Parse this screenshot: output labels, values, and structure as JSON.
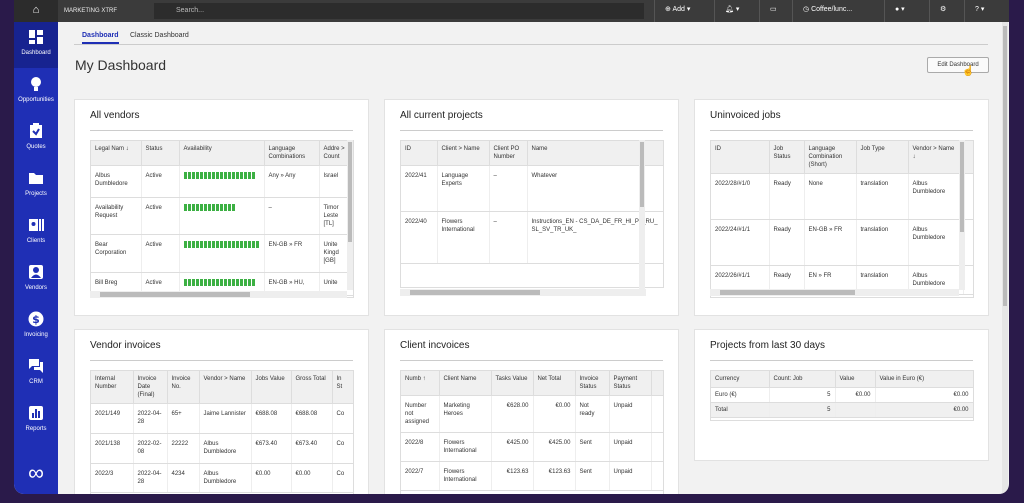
{
  "topbar": {
    "project": "MARKETING XTRF",
    "search_placeholder": "Search...",
    "add_label": "Add",
    "timer_label": "Coffee/lunc..."
  },
  "sidebar": {
    "items": [
      {
        "label": "Dashboard",
        "icon": "grid-icon"
      },
      {
        "label": "Opportunities",
        "icon": "lightbulb-icon"
      },
      {
        "label": "Quotes",
        "icon": "clipboard-icon"
      },
      {
        "label": "Projects",
        "icon": "folder-icon"
      },
      {
        "label": "Clients",
        "icon": "clients-icon"
      },
      {
        "label": "Vendors",
        "icon": "vendor-icon"
      },
      {
        "label": "Invoicing",
        "icon": "dollar-icon"
      },
      {
        "label": "CRM",
        "icon": "chat-icon"
      },
      {
        "label": "Reports",
        "icon": "chart-icon"
      }
    ],
    "logo": "∞"
  },
  "tabs": [
    {
      "label": "Dashboard"
    },
    {
      "label": "Classic Dashboard"
    }
  ],
  "page_title": "My Dashboard",
  "edit_button": "Edit Dashboard",
  "cards": {
    "vendors": {
      "title": "All vendors",
      "headers": [
        "Legal Nam ↓",
        "Status",
        "Availability",
        "Language Combinations",
        "Addre > Count"
      ],
      "rows": [
        [
          "Albus Dumbledore",
          "Active",
          "",
          "Any » Any",
          "Israel"
        ],
        [
          "Availability Request",
          "Active",
          "",
          "–",
          "Timor Leste [TL]"
        ],
        [
          "Bear Corporation",
          "Active",
          "",
          "EN-GB » FR",
          "Unite Kingd [GB]"
        ],
        [
          "Bill Breg",
          "Active",
          "",
          "EN-GB » HU,",
          "Unite"
        ]
      ]
    },
    "projects": {
      "title": "All current projects",
      "headers": [
        "ID",
        "Client > Name",
        "Client PO Number",
        "Name"
      ],
      "rows": [
        [
          "2022/41",
          "Language Experts",
          "–",
          "Whatever"
        ],
        [
          "2022/40",
          "Flowers International",
          "–",
          "Instructions_EN - CS_DA_DE_FR_HI_PL_RU_SL_SV_TR_UK_"
        ]
      ]
    },
    "uninvoiced": {
      "title": "Uninvoiced jobs",
      "headers": [
        "ID",
        "Job Status",
        "Language Combination (Short)",
        "Job Type",
        "Vendor > Name ↓"
      ],
      "rows": [
        [
          "2022/28/#1/0",
          "Ready",
          "None",
          "translation",
          "Albus Dumbledore"
        ],
        [
          "2022/24/#1/1",
          "Ready",
          "EN-GB » FR",
          "translation",
          "Albus Dumbledore"
        ],
        [
          "2022/26/#1/1",
          "Ready",
          "EN » FR",
          "translation",
          "Albus Dumbledore"
        ]
      ]
    },
    "vendor_invoices": {
      "title": "Vendor invoices",
      "headers": [
        "Internal Number",
        "Invoice Date (Final)",
        "Invoice No.",
        "Vendor > Name",
        "Jobs Value",
        "Gross Total",
        "In St"
      ],
      "rows": [
        [
          "2021/149",
          "2022-04-28",
          "65+",
          "Jaime Lannister",
          "€688.08",
          "€688.08",
          "Co"
        ],
        [
          "2021/138",
          "2022-02-08",
          "22222",
          "Albus Dumbledore",
          "€673.40",
          "€673.40",
          "Co"
        ],
        [
          "2022/3",
          "2022-04-28",
          "4234",
          "Albus Dumbledore",
          "€0.00",
          "€0.00",
          "Co"
        ]
      ]
    },
    "client_invoices": {
      "title": "Client incvoices",
      "headers": [
        "Numb ↑",
        "Client Name",
        "Tasks Value",
        "Net Total",
        "Invoice Status",
        "Payment Status"
      ],
      "rows": [
        [
          "Number not assigned",
          "Marketing Heroes",
          "€628.00",
          "€0.00",
          "Not ready",
          "Unpaid"
        ],
        [
          "2022/8",
          "Flowers International",
          "€425.00",
          "€425.00",
          "Sent",
          "Unpaid"
        ],
        [
          "2022/7",
          "Flowers International",
          "€123.63",
          "€123.63",
          "Sent",
          "Unpaid"
        ]
      ]
    },
    "last30": {
      "title": "Projects from last 30 days",
      "headers": [
        "Currency",
        "Count: Job",
        "Value",
        "Value in Euro (€)"
      ],
      "rows": [
        [
          "Euro (€)",
          "5",
          "€0.00",
          "€0.00"
        ],
        [
          "Total",
          "5",
          "",
          "€0.00"
        ]
      ]
    }
  },
  "colors": {
    "sidebar": "#1f2fb5",
    "availability": "#3cb043",
    "accent": "#1f2fb5"
  }
}
